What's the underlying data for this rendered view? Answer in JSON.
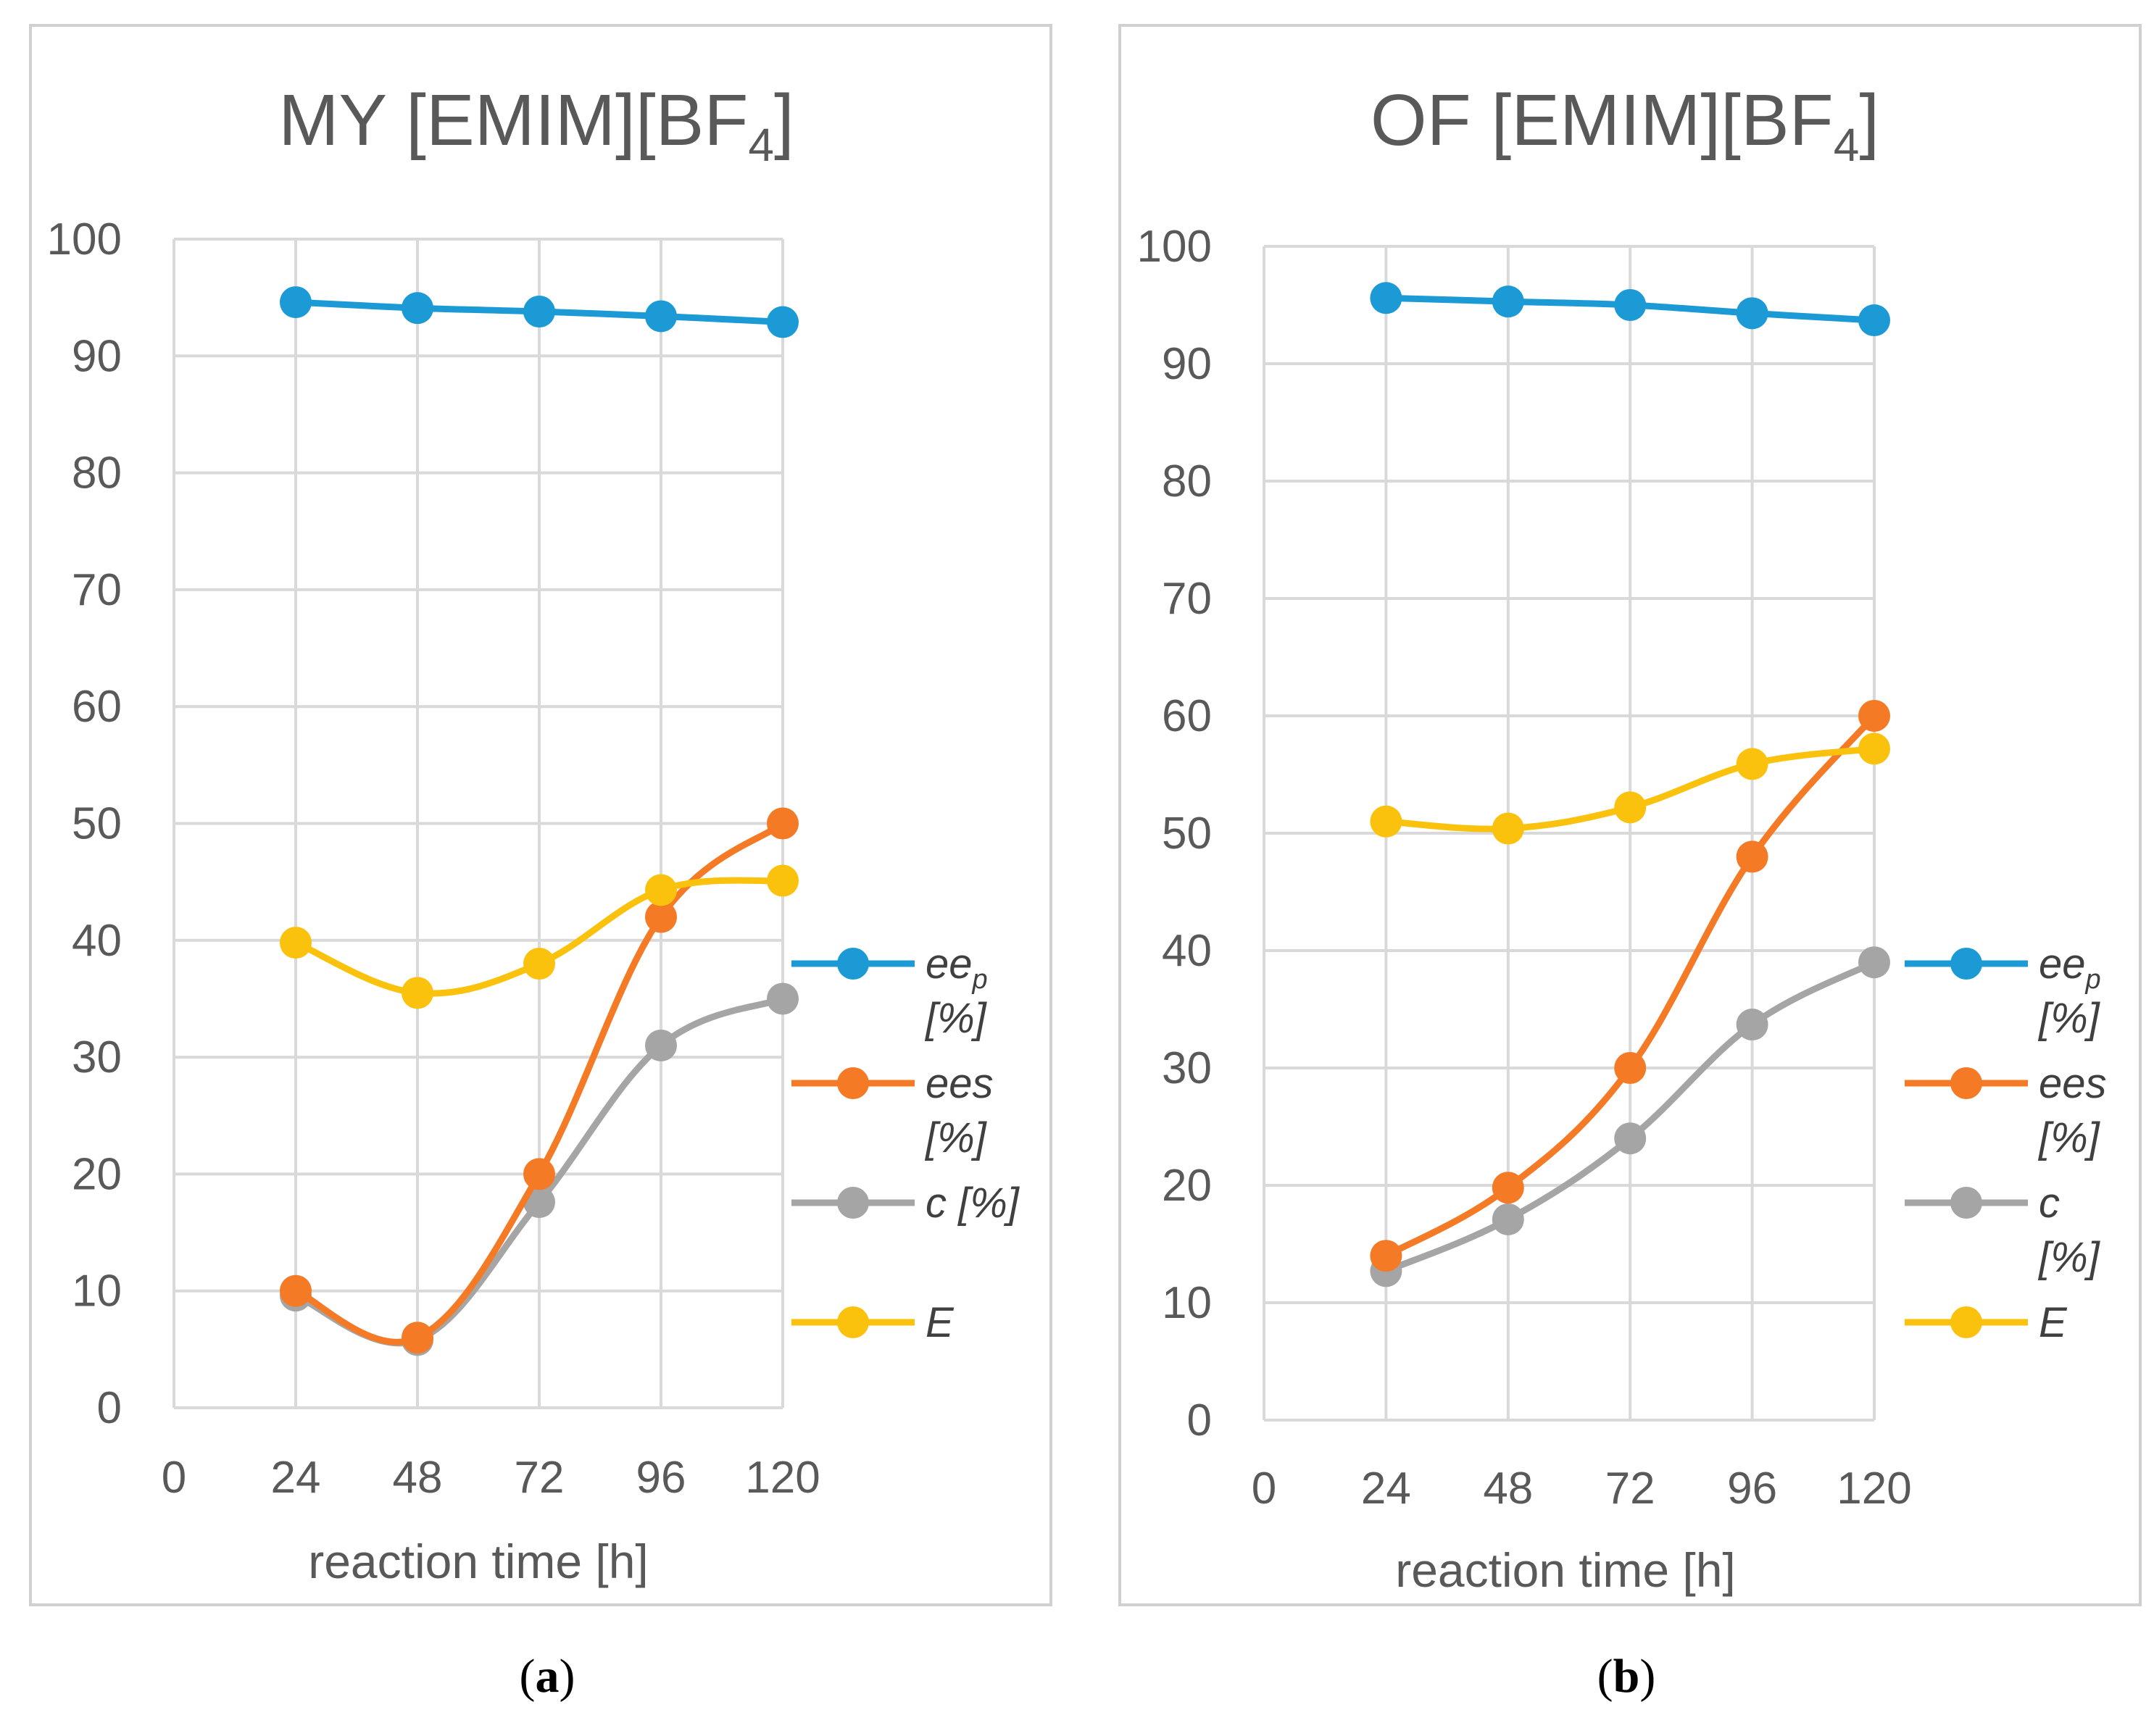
{
  "figure": {
    "caption_a_open": "(",
    "caption_a_letter": "a",
    "caption_a_close": ")",
    "caption_b_open": "(",
    "caption_b_letter": "b",
    "caption_b_close": ")"
  },
  "colors": {
    "ee_p": "#1b9ad6",
    "ee_s": "#f47a25",
    "c": "#a5a5a5",
    "E": "#fbc20d",
    "grid": "#d9d9d9",
    "text": "#595959"
  },
  "chart_data": [
    {
      "type": "line",
      "title": "MY [EMIM][BF4]",
      "title_main": "MY [EMIM][BF",
      "title_sub": "4",
      "title_end": "]",
      "xlabel": "reaction time [h]",
      "ylabel": "",
      "x_ticks": [
        "0",
        "24",
        "48",
        "72",
        "96",
        "120"
      ],
      "y_ticks": [
        "0",
        "10",
        "20",
        "30",
        "40",
        "50",
        "60",
        "70",
        "80",
        "90",
        "100"
      ],
      "xlim": [
        0,
        120
      ],
      "ylim": [
        0,
        100
      ],
      "x": [
        24,
        48,
        72,
        96,
        120
      ],
      "legend": {
        "ee_p": [
          "ee",
          "p",
          "[%]"
        ],
        "ee_s": [
          "ees",
          "[%]"
        ],
        "c": [
          "c [%]"
        ],
        "E": [
          "E"
        ]
      },
      "series": [
        {
          "name": "eep [%]",
          "key": "ee_p",
          "values": [
            94.6,
            94.1,
            93.8,
            93.4,
            92.9
          ]
        },
        {
          "name": "ees [%]",
          "key": "ee_s",
          "values": [
            10,
            6,
            20,
            42,
            50
          ]
        },
        {
          "name": "c [%]",
          "key": "c",
          "values": [
            9.6,
            5.8,
            17.6,
            31,
            35
          ]
        },
        {
          "name": "E",
          "key": "E",
          "values": [
            39.8,
            35.5,
            38,
            44.3,
            45.1
          ]
        }
      ]
    },
    {
      "type": "line",
      "title": "OF [EMIM][BF4]",
      "title_main": "OF [EMIM][BF",
      "title_sub": "4",
      "title_end": "]",
      "xlabel": "reaction time [h]",
      "ylabel": "",
      "x_ticks": [
        "0",
        "24",
        "48",
        "72",
        "96",
        "120"
      ],
      "y_ticks": [
        "0",
        "10",
        "20",
        "30",
        "40",
        "50",
        "60",
        "70",
        "80",
        "90",
        "100"
      ],
      "xlim": [
        0,
        120
      ],
      "ylim": [
        0,
        100
      ],
      "x": [
        24,
        48,
        72,
        96,
        120
      ],
      "legend": {
        "ee_p": [
          "ee",
          "p",
          "[%]"
        ],
        "ee_s": [
          "ees",
          "[%]"
        ],
        "c": [
          "c",
          "[%]"
        ],
        "E": [
          "E"
        ]
      },
      "series": [
        {
          "name": "eep [%]",
          "key": "ee_p",
          "values": [
            95.6,
            95.3,
            95,
            94.3,
            93.7
          ]
        },
        {
          "name": "ees [%]",
          "key": "ee_s",
          "values": [
            14,
            19.8,
            30,
            48,
            60
          ]
        },
        {
          "name": "c [%]",
          "key": "c",
          "values": [
            12.7,
            17.1,
            24,
            33.7,
            39
          ]
        },
        {
          "name": "E",
          "key": "E",
          "values": [
            51,
            50.4,
            52.2,
            55.9,
            57.2
          ]
        }
      ]
    }
  ]
}
